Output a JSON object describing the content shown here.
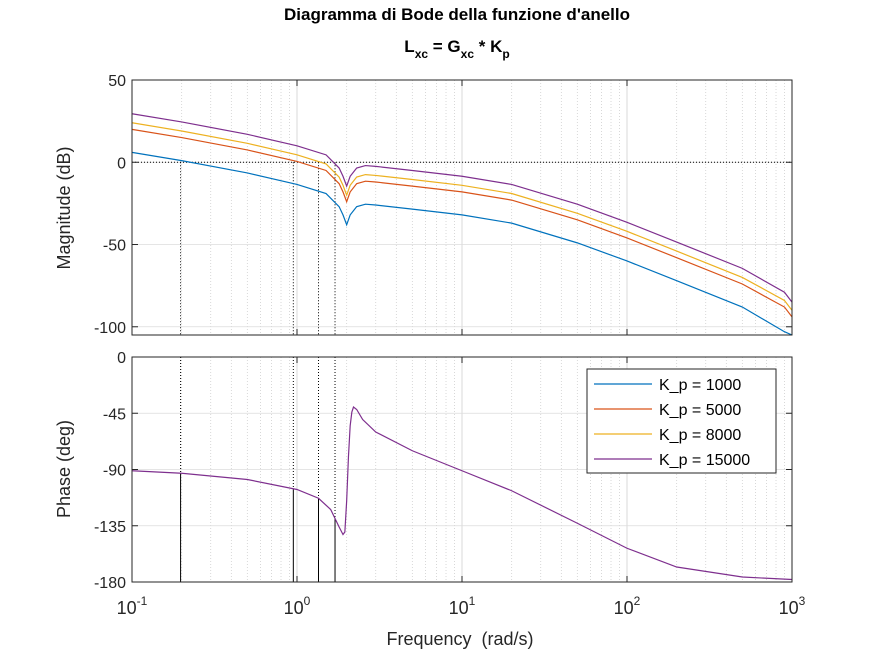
{
  "figure": {
    "title_line1": "Diagramma di Bode della funzione d'anello",
    "title_line2": {
      "L": "L",
      "L_sub": "xc",
      "eq": " = G",
      "G_sub": "xc",
      "mul": " * K",
      "K_sub": "p"
    },
    "xlabel": "Frequency  (rad/s)"
  },
  "chart_data": [
    {
      "type": "line",
      "name": "magnitude",
      "ylabel": "Magnitude (dB)",
      "x_scale": "log",
      "xlim": [
        0.1,
        1000
      ],
      "ylim": [
        -105,
        50
      ],
      "yticks": [
        50,
        0,
        -50,
        -100
      ],
      "ytick_labels": [
        "50",
        "0",
        "-50",
        "-100"
      ],
      "x_ticks": [
        {
          "base": "10",
          "exp": "-1"
        },
        {
          "base": "10",
          "exp": "0"
        },
        {
          "base": "10",
          "exp": "1"
        },
        {
          "base": "10",
          "exp": "2"
        },
        {
          "base": "10",
          "exp": "3"
        }
      ],
      "grid": true,
      "reference_line_y": 0,
      "crossover_markers_x": [
        0.197,
        0.95,
        1.35,
        1.7
      ],
      "x": [
        0.1,
        0.2,
        0.5,
        1.0,
        1.5,
        1.8,
        1.9,
        2.0,
        2.1,
        2.3,
        2.6,
        3.0,
        5,
        10,
        20,
        50,
        100,
        200,
        500,
        900,
        1000
      ],
      "series": [
        {
          "name": "K_p = 1000",
          "color": "#0072BD",
          "values": [
            6,
            1,
            -6.5,
            -13.5,
            -19,
            -27,
            -32,
            -38,
            -32,
            -27,
            -25.5,
            -26,
            -28.5,
            -32,
            -37,
            -49,
            -60,
            -72,
            -88,
            -103,
            -105
          ]
        },
        {
          "name": "K_p = 5000",
          "color": "#D95319",
          "values": [
            20,
            15,
            7.5,
            0.5,
            -5,
            -13,
            -18,
            -24,
            -18,
            -13,
            -11.5,
            -12,
            -14.5,
            -18,
            -23,
            -35,
            -46,
            -58,
            -74,
            -88,
            -94
          ]
        },
        {
          "name": "K_p = 8000",
          "color": "#EDB120",
          "values": [
            24,
            19,
            11.5,
            4.5,
            -1,
            -9,
            -14,
            -20,
            -14,
            -9,
            -7.5,
            -8,
            -10.5,
            -14,
            -19,
            -31,
            -42,
            -54,
            -70,
            -84,
            -90
          ]
        },
        {
          "name": "K_p = 15000",
          "color": "#7E2F8E",
          "values": [
            29.5,
            24.5,
            17,
            10,
            4.5,
            -3.5,
            -8.5,
            -14.5,
            -8.5,
            -3.5,
            -2,
            -2.5,
            -5,
            -8.5,
            -13.5,
            -25.5,
            -36.5,
            -48.5,
            -64.5,
            -79,
            -85
          ]
        }
      ]
    },
    {
      "type": "line",
      "name": "phase",
      "ylabel": "Phase (deg)",
      "x_scale": "log",
      "xlim": [
        0.1,
        1000
      ],
      "ylim": [
        -180,
        0
      ],
      "yticks": [
        0,
        -45,
        -90,
        -135,
        -180
      ],
      "ytick_labels": [
        "0",
        "-45",
        "-90",
        "-135",
        "-180"
      ],
      "grid": true,
      "reference_line_y": -180,
      "crossover_markers_x": [
        0.197,
        0.95,
        1.35,
        1.7
      ],
      "legend_position": "top-right",
      "x": [
        0.1,
        0.2,
        0.5,
        1.0,
        1.35,
        1.6,
        1.8,
        1.9,
        1.95,
        2.0,
        2.05,
        2.1,
        2.15,
        2.2,
        2.3,
        2.5,
        3,
        5,
        10,
        20,
        50,
        100,
        200,
        500,
        1000
      ],
      "series": [
        {
          "name": "K_p = 15000",
          "color": "#7E2F8E",
          "values": [
            -91,
            -93,
            -98,
            -106,
            -113,
            -122,
            -136,
            -142,
            -140,
            -115,
            -80,
            -55,
            -44,
            -40,
            -42,
            -50,
            -60,
            -75,
            -91,
            -107,
            -133,
            -153,
            -168,
            -176,
            -178
          ]
        }
      ]
    }
  ],
  "legend": {
    "entries": [
      "K_p = 1000",
      "K_p = 5000",
      "K_p = 8000",
      "K_p = 15000"
    ],
    "colors": [
      "#0072BD",
      "#D95319",
      "#EDB120",
      "#7E2F8E"
    ]
  }
}
